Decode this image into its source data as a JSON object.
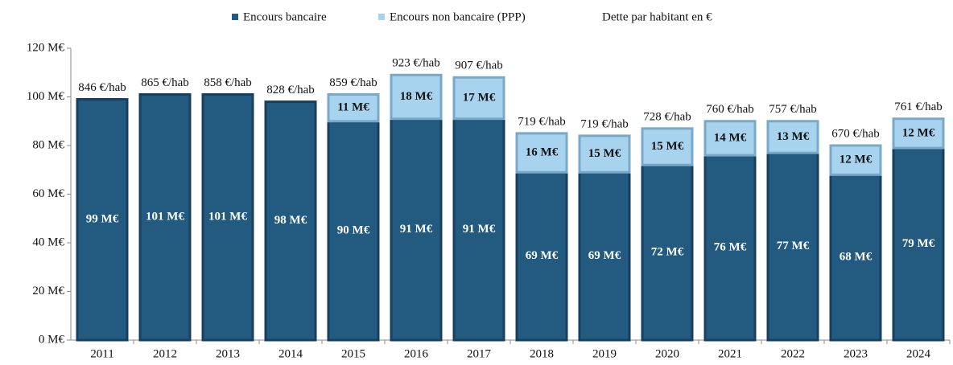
{
  "chart_data": {
    "type": "bar",
    "stacked": true,
    "categories": [
      "2011",
      "2012",
      "2013",
      "2014",
      "2015",
      "2016",
      "2017",
      "2018",
      "2019",
      "2020",
      "2021",
      "2022",
      "2023",
      "2024"
    ],
    "series": [
      {
        "name": "Encours bancaire",
        "color": "#235a80",
        "values": [
          99,
          101,
          101,
          98,
          90,
          91,
          91,
          69,
          69,
          72,
          76,
          77,
          68,
          79
        ],
        "value_labels": [
          "99 M€",
          "101 M€",
          "101 M€",
          "98 M€",
          "90 M€",
          "91 M€",
          "91 M€",
          "69 M€",
          "69 M€",
          "72 M€",
          "76 M€",
          "77 M€",
          "68 M€",
          "79 M€"
        ]
      },
      {
        "name": "Encours non bancaire (PPP)",
        "color": "#a8d3ee",
        "values": [
          null,
          null,
          null,
          null,
          11,
          18,
          17,
          16,
          15,
          15,
          14,
          13,
          12,
          12
        ],
        "value_labels": [
          null,
          null,
          null,
          null,
          "11 M€",
          "18 M€",
          "17 M€",
          "16 M€",
          "15 M€",
          "15 M€",
          "14 M€",
          "13 M€",
          "12 M€",
          "12 M€"
        ]
      },
      {
        "name": "Dette par habitant en €",
        "type": "label",
        "values": [
          846,
          865,
          858,
          828,
          859,
          923,
          907,
          719,
          719,
          728,
          760,
          757,
          670,
          761
        ],
        "value_labels": [
          "846 €/hab",
          "865 €/hab",
          "858 €/hab",
          "828 €/hab",
          "859 €/hab",
          "923 €/hab",
          "907 €/hab",
          "719 €/hab",
          "719 €/hab",
          "728 €/hab",
          "760 €/hab",
          "757 €/hab",
          "670 €/hab",
          "761 €/hab"
        ]
      }
    ],
    "ylim": [
      0,
      120
    ],
    "yticks": [
      {
        "value": 0,
        "label": "0 M€"
      },
      {
        "value": 20,
        "label": "20 M€"
      },
      {
        "value": 40,
        "label": "40 M€"
      },
      {
        "value": 60,
        "label": "60 M€"
      },
      {
        "value": 80,
        "label": "80 M€"
      },
      {
        "value": 100,
        "label": "100 M€"
      },
      {
        "value": 120,
        "label": "120 M€"
      }
    ],
    "grid": false,
    "legend": "top"
  }
}
